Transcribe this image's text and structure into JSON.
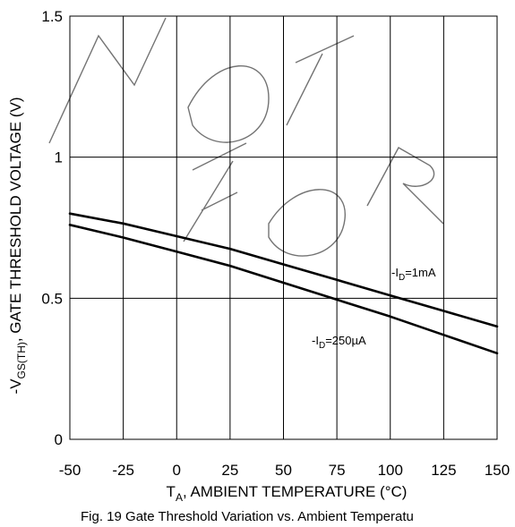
{
  "chart_data": {
    "type": "line",
    "title": "",
    "caption": "Fig. 19 Gate Threshold Variation vs. Ambient Temperatu",
    "xlabel": {
      "prefix": "T",
      "sub": "A",
      "text": ", AMBIENT TEMPERATURE (°C)"
    },
    "ylabel": {
      "prefix": "-V",
      "sub": "GS(TH)",
      "text": ", GATE THRESHOLD VOLTAGE (V)"
    },
    "xlim": [
      -50,
      150
    ],
    "ylim": [
      0,
      1.5
    ],
    "xticks": [
      -50,
      -25,
      0,
      25,
      50,
      75,
      100,
      125,
      150
    ],
    "xtick_labels": [
      "-50",
      "-25",
      "0",
      "25",
      "50",
      "75",
      "100",
      "125",
      "150"
    ],
    "yticks": [
      0,
      0.5,
      1,
      1.5
    ],
    "ytick_labels": [
      "0",
      "0.5",
      "1",
      "1.5"
    ],
    "grid": true,
    "series": [
      {
        "name": "-ID=1mA",
        "label": {
          "prefix": "-I",
          "sub": "D",
          "text": "=1mA"
        },
        "x": [
          -50,
          -25,
          0,
          25,
          50,
          75,
          100,
          125,
          150
        ],
        "y": [
          0.8,
          0.765,
          0.72,
          0.675,
          0.62,
          0.565,
          0.51,
          0.455,
          0.4
        ]
      },
      {
        "name": "-ID=250µA",
        "label": {
          "prefix": "-I",
          "sub": "D",
          "text": "=250µA"
        },
        "x": [
          -50,
          -25,
          0,
          25,
          50,
          75,
          100,
          125,
          150
        ],
        "y": [
          0.76,
          0.715,
          0.665,
          0.615,
          0.555,
          0.495,
          0.435,
          0.37,
          0.305
        ]
      }
    ],
    "watermark": "NOT FOR"
  }
}
